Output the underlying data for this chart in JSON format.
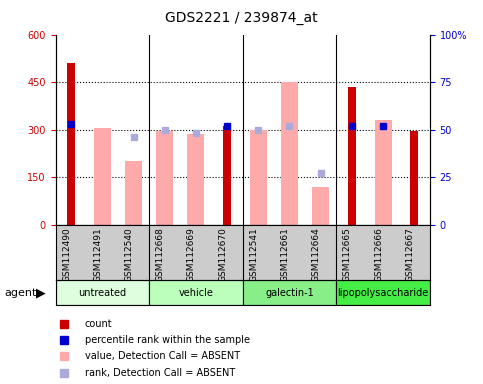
{
  "title": "GDS2221 / 239874_at",
  "samples": [
    "GSM112490",
    "GSM112491",
    "GSM112540",
    "GSM112668",
    "GSM112669",
    "GSM112670",
    "GSM112541",
    "GSM112661",
    "GSM112664",
    "GSM112665",
    "GSM112666",
    "GSM112667"
  ],
  "groups": [
    {
      "name": "untreated",
      "color": "#ddffdd",
      "start": 0,
      "end": 3
    },
    {
      "name": "vehicle",
      "color": "#bbffbb",
      "start": 3,
      "end": 6
    },
    {
      "name": "galectin-1",
      "color": "#88ee88",
      "start": 6,
      "end": 9
    },
    {
      "name": "lipopolysaccharide",
      "color": "#44ee44",
      "start": 9,
      "end": 12
    }
  ],
  "red_bars": [
    510,
    0,
    0,
    0,
    0,
    310,
    0,
    0,
    0,
    435,
    0,
    295
  ],
  "pink_bars": [
    0,
    305,
    200,
    295,
    285,
    0,
    300,
    450,
    120,
    0,
    330,
    0
  ],
  "blue_squares_pct": [
    53,
    null,
    null,
    null,
    null,
    52,
    null,
    null,
    null,
    52,
    52,
    null
  ],
  "light_blue_squares_pct": [
    null,
    null,
    46,
    50,
    48,
    null,
    50,
    52,
    27,
    null,
    null,
    null
  ],
  "ylim_left": [
    0,
    600
  ],
  "ylim_right": [
    0,
    100
  ],
  "yticks_left": [
    0,
    150,
    300,
    450,
    600
  ],
  "yticks_right": [
    0,
    25,
    50,
    75,
    100
  ],
  "red_color": "#cc0000",
  "pink_color": "#ffaaaa",
  "blue_color": "#0000cc",
  "light_blue_color": "#aaaadd",
  "bg_color": "#ffffff",
  "gray_color": "#cccccc",
  "title_fontsize": 10,
  "tick_fontsize": 7,
  "label_fontsize": 6.5,
  "group_fontsize": 7,
  "legend_fontsize": 7,
  "agent_fontsize": 8
}
